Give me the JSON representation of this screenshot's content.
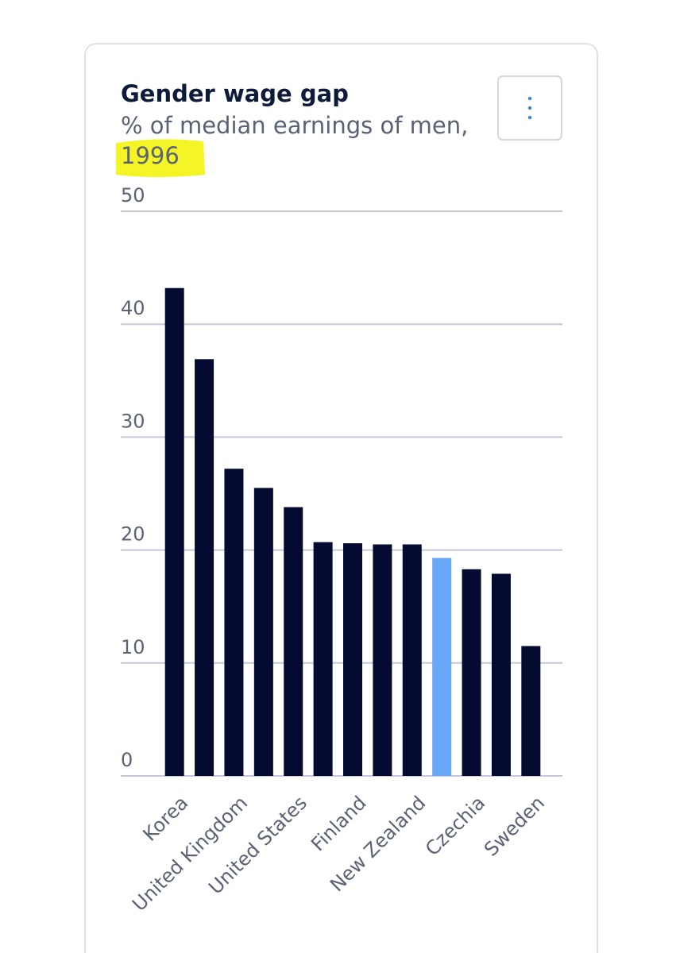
{
  "chart_data": {
    "type": "bar",
    "title": "Gender wage gap",
    "subtitle": [
      "% of median earnings of men,",
      "1996"
    ],
    "categories": [
      "Korea",
      null,
      "United Kingdom",
      null,
      "United States",
      null,
      "Finland",
      null,
      "New Zealand",
      null,
      "Czechia",
      null,
      "Sweden"
    ],
    "values": [
      43.2,
      36.9,
      27.2,
      25.5,
      23.8,
      20.7,
      20.6,
      20.5,
      20.5,
      19.3,
      18.3,
      17.9,
      11.5
    ],
    "colors": [
      "#050a30",
      "#050a30",
      "#050a30",
      "#050a30",
      "#050a30",
      "#050a30",
      "#050a30",
      "#050a30",
      "#050a30",
      "#6aa8f7",
      "#050a30",
      "#050a30",
      "#050a30"
    ],
    "ylim": [
      0,
      50
    ],
    "yticks": [
      0,
      10,
      20,
      30,
      40,
      50
    ],
    "grid": true
  }
}
